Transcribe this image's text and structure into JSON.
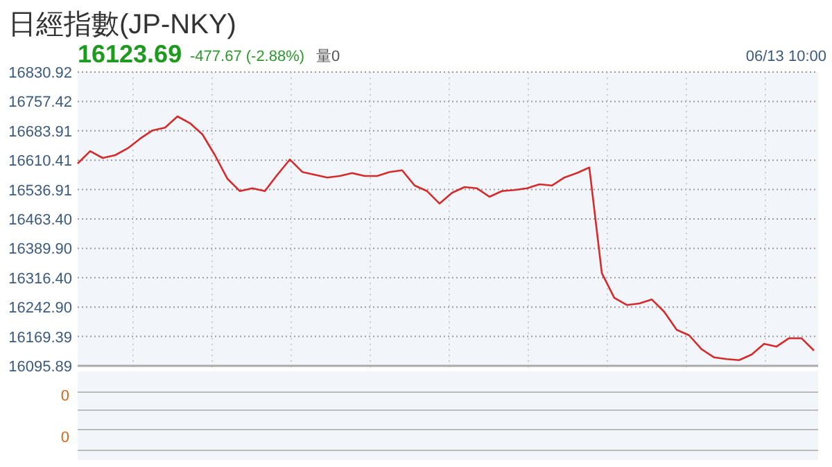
{
  "chart_data": [
    {
      "type": "line",
      "title": "日經指數(JP-NKY)",
      "subtitle": "16123.69",
      "annotations": [
        "-477.67 (-2.88%)",
        "量0",
        "06/13 10:00"
      ],
      "categories": [
        null,
        null,
        null,
        null,
        null,
        null,
        null,
        null,
        null,
        null,
        null,
        null,
        null,
        null,
        null,
        null,
        null,
        null,
        null,
        null,
        null,
        null,
        null,
        null,
        null,
        null,
        null,
        null,
        null,
        null,
        null,
        null,
        null,
        null,
        null,
        null,
        null,
        null,
        null,
        null,
        null,
        null,
        null,
        null,
        null,
        null,
        null,
        null,
        null,
        null,
        null,
        null,
        null,
        null,
        null,
        null,
        null,
        null,
        null,
        null
      ],
      "series": [
        {
          "color": "#d42a2a",
          "values": [
            16602,
            16633,
            16616,
            16623,
            16640,
            16664,
            16685,
            16692,
            16720,
            16703,
            16675,
            16623,
            16564,
            16533,
            16540,
            16533,
            16574,
            16612,
            16581,
            16574,
            16567,
            16571,
            16578,
            16571,
            16571,
            16581,
            16585,
            16547,
            16533,
            16502,
            16529,
            16543,
            16540,
            16519,
            16533,
            16536,
            16540,
            16550,
            16547,
            16567,
            16578,
            16592,
            16328,
            16266,
            16248,
            16252,
            16262,
            16231,
            16186,
            16172,
            16137,
            16117,
            16113,
            16110,
            16124,
            16151,
            16144,
            16165,
            16165,
            16134
          ]
        }
      ],
      "ylim": [
        16095.89,
        16830.92
      ],
      "yticks": [
        {
          "value": 16830.92,
          "label": "16830.92"
        },
        {
          "value": 16757.42,
          "label": "16757.42"
        },
        {
          "value": 16683.91,
          "label": "16683.91"
        },
        {
          "value": 16610.41,
          "label": "16610.41"
        },
        {
          "value": 16536.91,
          "label": "16536.91"
        },
        {
          "value": 16463.4,
          "label": "16463.40"
        },
        {
          "value": 16389.9,
          "label": "16389.90"
        },
        {
          "value": 16316.4,
          "label": "16316.40"
        },
        {
          "value": 16242.9,
          "label": "16242.90"
        },
        {
          "value": 16169.39,
          "label": "16169.39"
        },
        {
          "value": 16095.89,
          "label": "16095.89"
        }
      ],
      "grid": true,
      "tick_labels": "y"
    },
    {
      "type": "other",
      "annotations": [
        "0",
        "0"
      ]
    }
  ]
}
